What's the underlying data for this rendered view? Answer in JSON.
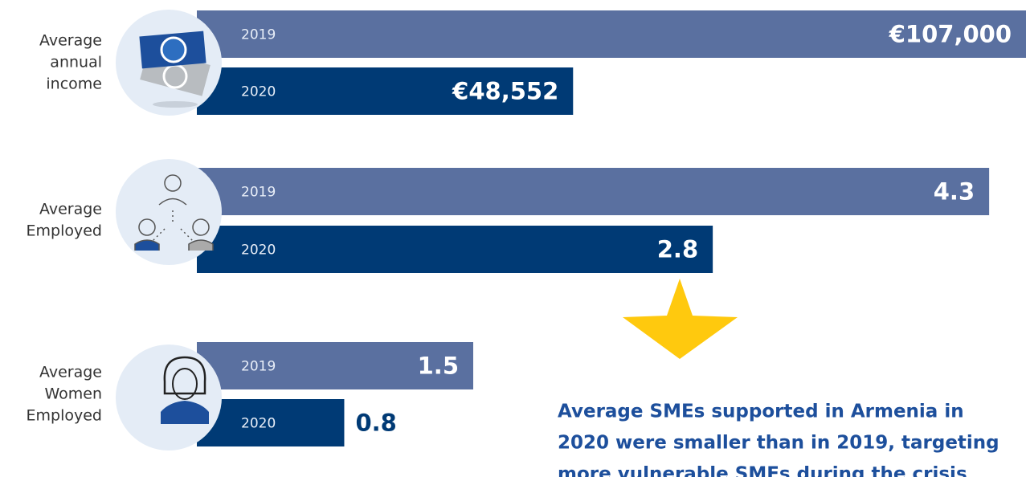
{
  "chart_data": [
    {
      "type": "bar",
      "label": [
        "Average",
        "annual",
        "income"
      ],
      "categories": [
        "2019",
        "2020"
      ],
      "values": [
        107000,
        48552
      ],
      "value_labels": [
        "€107,000",
        "€48,552"
      ],
      "colors": [
        "#5a70a0",
        "#003a75"
      ],
      "xlim": [
        0,
        107000
      ]
    },
    {
      "type": "bar",
      "label": [
        "Average",
        "Employed"
      ],
      "categories": [
        "2019",
        "2020"
      ],
      "values": [
        4.3,
        2.8
      ],
      "colors": [
        "#5a70a0",
        "#003a75"
      ],
      "xlim": [
        0,
        4.5
      ]
    },
    {
      "type": "bar",
      "label": [
        "Average",
        "Women",
        "Employed"
      ],
      "categories": [
        "2019",
        "2020"
      ],
      "values": [
        1.5,
        0.8
      ],
      "colors": [
        "#5a70a0",
        "#003a75"
      ],
      "xlim": [
        0,
        4.5
      ]
    }
  ],
  "annotation": [
    "Average SMEs supported in Armenia in",
    "2020 were smaller than in 2019, targeting",
    "more vulnerable SMEs during the crisis"
  ]
}
